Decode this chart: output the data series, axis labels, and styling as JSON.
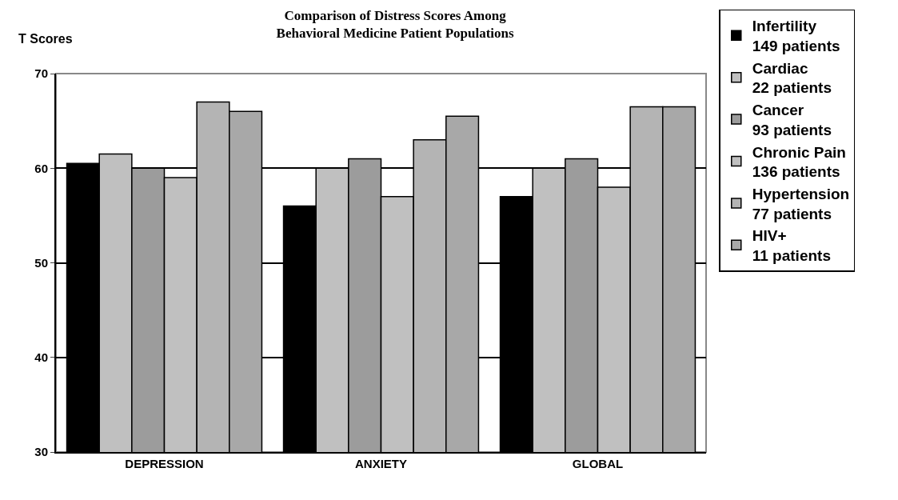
{
  "chart_data": {
    "type": "bar",
    "title": "Comparison of Distress Scores Among\nBehavioral Medicine Patient Populations",
    "ylabel": "T Scores",
    "categories": [
      "DEPRESSION",
      "ANXIETY",
      "GLOBAL"
    ],
    "series": [
      {
        "name": "Infertility\n149 patients",
        "color": "#000000",
        "values": [
          60.5,
          56,
          57
        ]
      },
      {
        "name": "Cardiac\n22 patients",
        "color": "#c0c0c0",
        "values": [
          61.5,
          60,
          60
        ]
      },
      {
        "name": "Cancer\n93 patients",
        "color": "#9c9c9c",
        "values": [
          60,
          61,
          61
        ]
      },
      {
        "name": "Chronic Pain\n136 patients",
        "color": "#c0c0c0",
        "values": [
          59,
          57,
          58
        ]
      },
      {
        "name": "Hypertension\n77 patients",
        "color": "#b4b4b4",
        "values": [
          67,
          63,
          66.5
        ]
      },
      {
        "name": "HIV+\n11 patients",
        "color": "#a8a8a8",
        "values": [
          66,
          65.5,
          66.5
        ]
      }
    ],
    "ylim": [
      30,
      70
    ],
    "yticks": [
      30,
      40,
      50,
      60,
      70
    ],
    "grid": "y",
    "legend": "right"
  }
}
